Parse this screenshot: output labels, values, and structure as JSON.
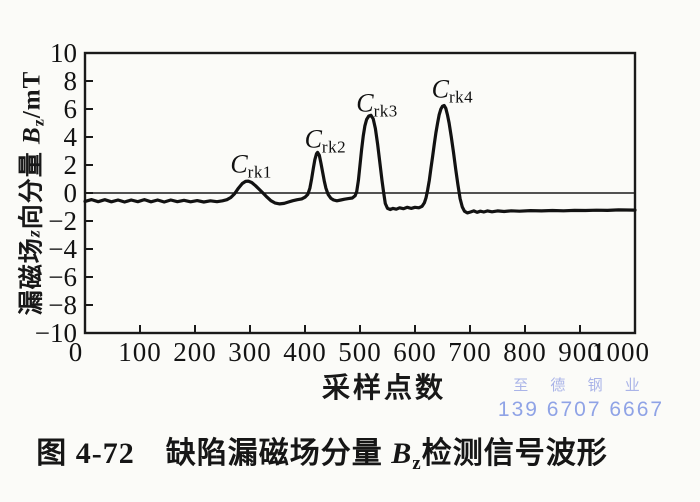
{
  "figure": {
    "caption": {
      "prefix": "图 4-72　缺陷漏磁场分量 ",
      "B": "B",
      "B_sub": "z",
      "suffix": "检测信号波形"
    },
    "watermark": {
      "line1": "至 德 钢 业",
      "line2": "139 6707 6667",
      "color_line1": "#aab4e8",
      "color_line2": "#8fa3e6"
    }
  },
  "chart_data": {
    "type": "line",
    "title": "",
    "xlabel": "采样点数",
    "ylabel": {
      "cjk_prefix": "漏磁场",
      "z_italic": "z",
      "cjk_suffix": "向分量",
      "B": "B",
      "B_sub": "z",
      "unit": "/mT"
    },
    "xlim": [
      0,
      1000
    ],
    "ylim": [
      -10,
      10
    ],
    "grid": false,
    "legend": "none",
    "zero_line": true,
    "line_color": "#121212",
    "axis_color": "#1a1a1a",
    "x_ticks": [
      {
        "value": 0,
        "label": "0"
      },
      {
        "value": 100,
        "label": "100"
      },
      {
        "value": 200,
        "label": "200"
      },
      {
        "value": 300,
        "label": "300"
      },
      {
        "value": 400,
        "label": "400"
      },
      {
        "value": 500,
        "label": "500"
      },
      {
        "value": 600,
        "label": "600"
      },
      {
        "value": 700,
        "label": "700"
      },
      {
        "value": 800,
        "label": "800"
      },
      {
        "value": 900,
        "label": "900"
      },
      {
        "value": 1000,
        "label": "1000"
      }
    ],
    "y_ticks": [
      {
        "value": 10,
        "label": "10"
      },
      {
        "value": 8,
        "label": "8"
      },
      {
        "value": 6,
        "label": "6"
      },
      {
        "value": 4,
        "label": "4"
      },
      {
        "value": 2,
        "label": "2"
      },
      {
        "value": 0,
        "label": "0"
      },
      {
        "value": -2,
        "label": "−2"
      },
      {
        "value": -4,
        "label": "−4"
      },
      {
        "value": -6,
        "label": "−6"
      },
      {
        "value": -8,
        "label": "−8"
      },
      {
        "value": -10,
        "label": "−10"
      }
    ],
    "peaks": [
      {
        "id": "crk1",
        "main": "C",
        "sub": "rk1",
        "anchor_x": 302,
        "anchor_y": 1.95,
        "approx_peak_sample": 294,
        "approx_peak_mT": 0.85
      },
      {
        "id": "crk2",
        "main": "C",
        "sub": "rk2",
        "anchor_x": 437,
        "anchor_y": 3.75,
        "approx_peak_sample": 423,
        "approx_peak_mT": 2.9
      },
      {
        "id": "crk3",
        "main": "C",
        "sub": "rk3",
        "anchor_x": 531,
        "anchor_y": 6.3,
        "approx_peak_sample": 520,
        "approx_peak_mT": 5.55
      },
      {
        "id": "crk4",
        "main": "C",
        "sub": "rk4",
        "anchor_x": 668,
        "anchor_y": 7.3,
        "approx_peak_sample": 653,
        "approx_peak_mT": 6.25
      }
    ],
    "series": [
      {
        "name": "Bz signal",
        "points": [
          [
            0,
            -0.6
          ],
          [
            12,
            -0.47
          ],
          [
            24,
            -0.62
          ],
          [
            36,
            -0.48
          ],
          [
            48,
            -0.63
          ],
          [
            60,
            -0.5
          ],
          [
            72,
            -0.64
          ],
          [
            84,
            -0.5
          ],
          [
            96,
            -0.62
          ],
          [
            108,
            -0.47
          ],
          [
            120,
            -0.63
          ],
          [
            132,
            -0.5
          ],
          [
            144,
            -0.64
          ],
          [
            156,
            -0.5
          ],
          [
            168,
            -0.62
          ],
          [
            180,
            -0.52
          ],
          [
            192,
            -0.63
          ],
          [
            204,
            -0.54
          ],
          [
            216,
            -0.64
          ],
          [
            228,
            -0.56
          ],
          [
            240,
            -0.62
          ],
          [
            250,
            -0.56
          ],
          [
            258,
            -0.48
          ],
          [
            265,
            -0.32
          ],
          [
            272,
            -0.05
          ],
          [
            279,
            0.35
          ],
          [
            286,
            0.68
          ],
          [
            292,
            0.83
          ],
          [
            297,
            0.85
          ],
          [
            303,
            0.75
          ],
          [
            310,
            0.52
          ],
          [
            317,
            0.25
          ],
          [
            324,
            -0.02
          ],
          [
            331,
            -0.3
          ],
          [
            338,
            -0.55
          ],
          [
            346,
            -0.72
          ],
          [
            354,
            -0.78
          ],
          [
            362,
            -0.74
          ],
          [
            370,
            -0.64
          ],
          [
            378,
            -0.55
          ],
          [
            386,
            -0.48
          ],
          [
            394,
            -0.42
          ],
          [
            400,
            -0.3
          ],
          [
            405,
            -0.1
          ],
          [
            409,
            0.35
          ],
          [
            412,
            1.0
          ],
          [
            415,
            1.75
          ],
          [
            418,
            2.4
          ],
          [
            421,
            2.8
          ],
          [
            423,
            2.9
          ],
          [
            426,
            2.7
          ],
          [
            429,
            2.15
          ],
          [
            432,
            1.5
          ],
          [
            435,
            0.85
          ],
          [
            438,
            0.35
          ],
          [
            442,
            -0.1
          ],
          [
            447,
            -0.38
          ],
          [
            452,
            -0.5
          ],
          [
            458,
            -0.56
          ],
          [
            465,
            -0.5
          ],
          [
            472,
            -0.44
          ],
          [
            479,
            -0.4
          ],
          [
            486,
            -0.36
          ],
          [
            491,
            -0.2
          ],
          [
            494,
            0.1
          ],
          [
            497,
            0.9
          ],
          [
            500,
            2.0
          ],
          [
            503,
            3.1
          ],
          [
            506,
            4.1
          ],
          [
            509,
            4.8
          ],
          [
            512,
            5.25
          ],
          [
            516,
            5.5
          ],
          [
            520,
            5.55
          ],
          [
            524,
            5.3
          ],
          [
            528,
            4.6
          ],
          [
            532,
            3.5
          ],
          [
            536,
            2.2
          ],
          [
            540,
            0.9
          ],
          [
            543,
            0.0
          ],
          [
            546,
            -0.75
          ],
          [
            550,
            -1.1
          ],
          [
            555,
            -1.18
          ],
          [
            560,
            -1.1
          ],
          [
            566,
            -1.16
          ],
          [
            572,
            -1.06
          ],
          [
            579,
            -1.12
          ],
          [
            586,
            -1.02
          ],
          [
            593,
            -1.1
          ],
          [
            600,
            -1.02
          ],
          [
            607,
            -1.06
          ],
          [
            613,
            -0.95
          ],
          [
            617,
            -0.7
          ],
          [
            620,
            -0.35
          ],
          [
            623,
            0.2
          ],
          [
            626,
            0.9
          ],
          [
            629,
            1.75
          ],
          [
            632,
            2.6
          ],
          [
            635,
            3.5
          ],
          [
            638,
            4.3
          ],
          [
            641,
            5.0
          ],
          [
            644,
            5.6
          ],
          [
            647,
            6.0
          ],
          [
            650,
            6.2
          ],
          [
            653,
            6.25
          ],
          [
            656,
            6.05
          ],
          [
            659,
            5.6
          ],
          [
            662,
            5.0
          ],
          [
            666,
            4.0
          ],
          [
            670,
            2.9
          ],
          [
            674,
            1.7
          ],
          [
            678,
            0.6
          ],
          [
            682,
            -0.4
          ],
          [
            686,
            -1.0
          ],
          [
            690,
            -1.3
          ],
          [
            695,
            -1.42
          ],
          [
            701,
            -1.36
          ],
          [
            707,
            -1.28
          ],
          [
            713,
            -1.38
          ],
          [
            719,
            -1.3
          ],
          [
            725,
            -1.36
          ],
          [
            732,
            -1.28
          ],
          [
            740,
            -1.34
          ],
          [
            750,
            -1.28
          ],
          [
            762,
            -1.32
          ],
          [
            775,
            -1.27
          ],
          [
            790,
            -1.3
          ],
          [
            810,
            -1.26
          ],
          [
            830,
            -1.28
          ],
          [
            850,
            -1.25
          ],
          [
            870,
            -1.27
          ],
          [
            890,
            -1.24
          ],
          [
            910,
            -1.25
          ],
          [
            930,
            -1.23
          ],
          [
            950,
            -1.24
          ],
          [
            970,
            -1.21
          ],
          [
            1000,
            -1.22
          ]
        ]
      }
    ]
  }
}
